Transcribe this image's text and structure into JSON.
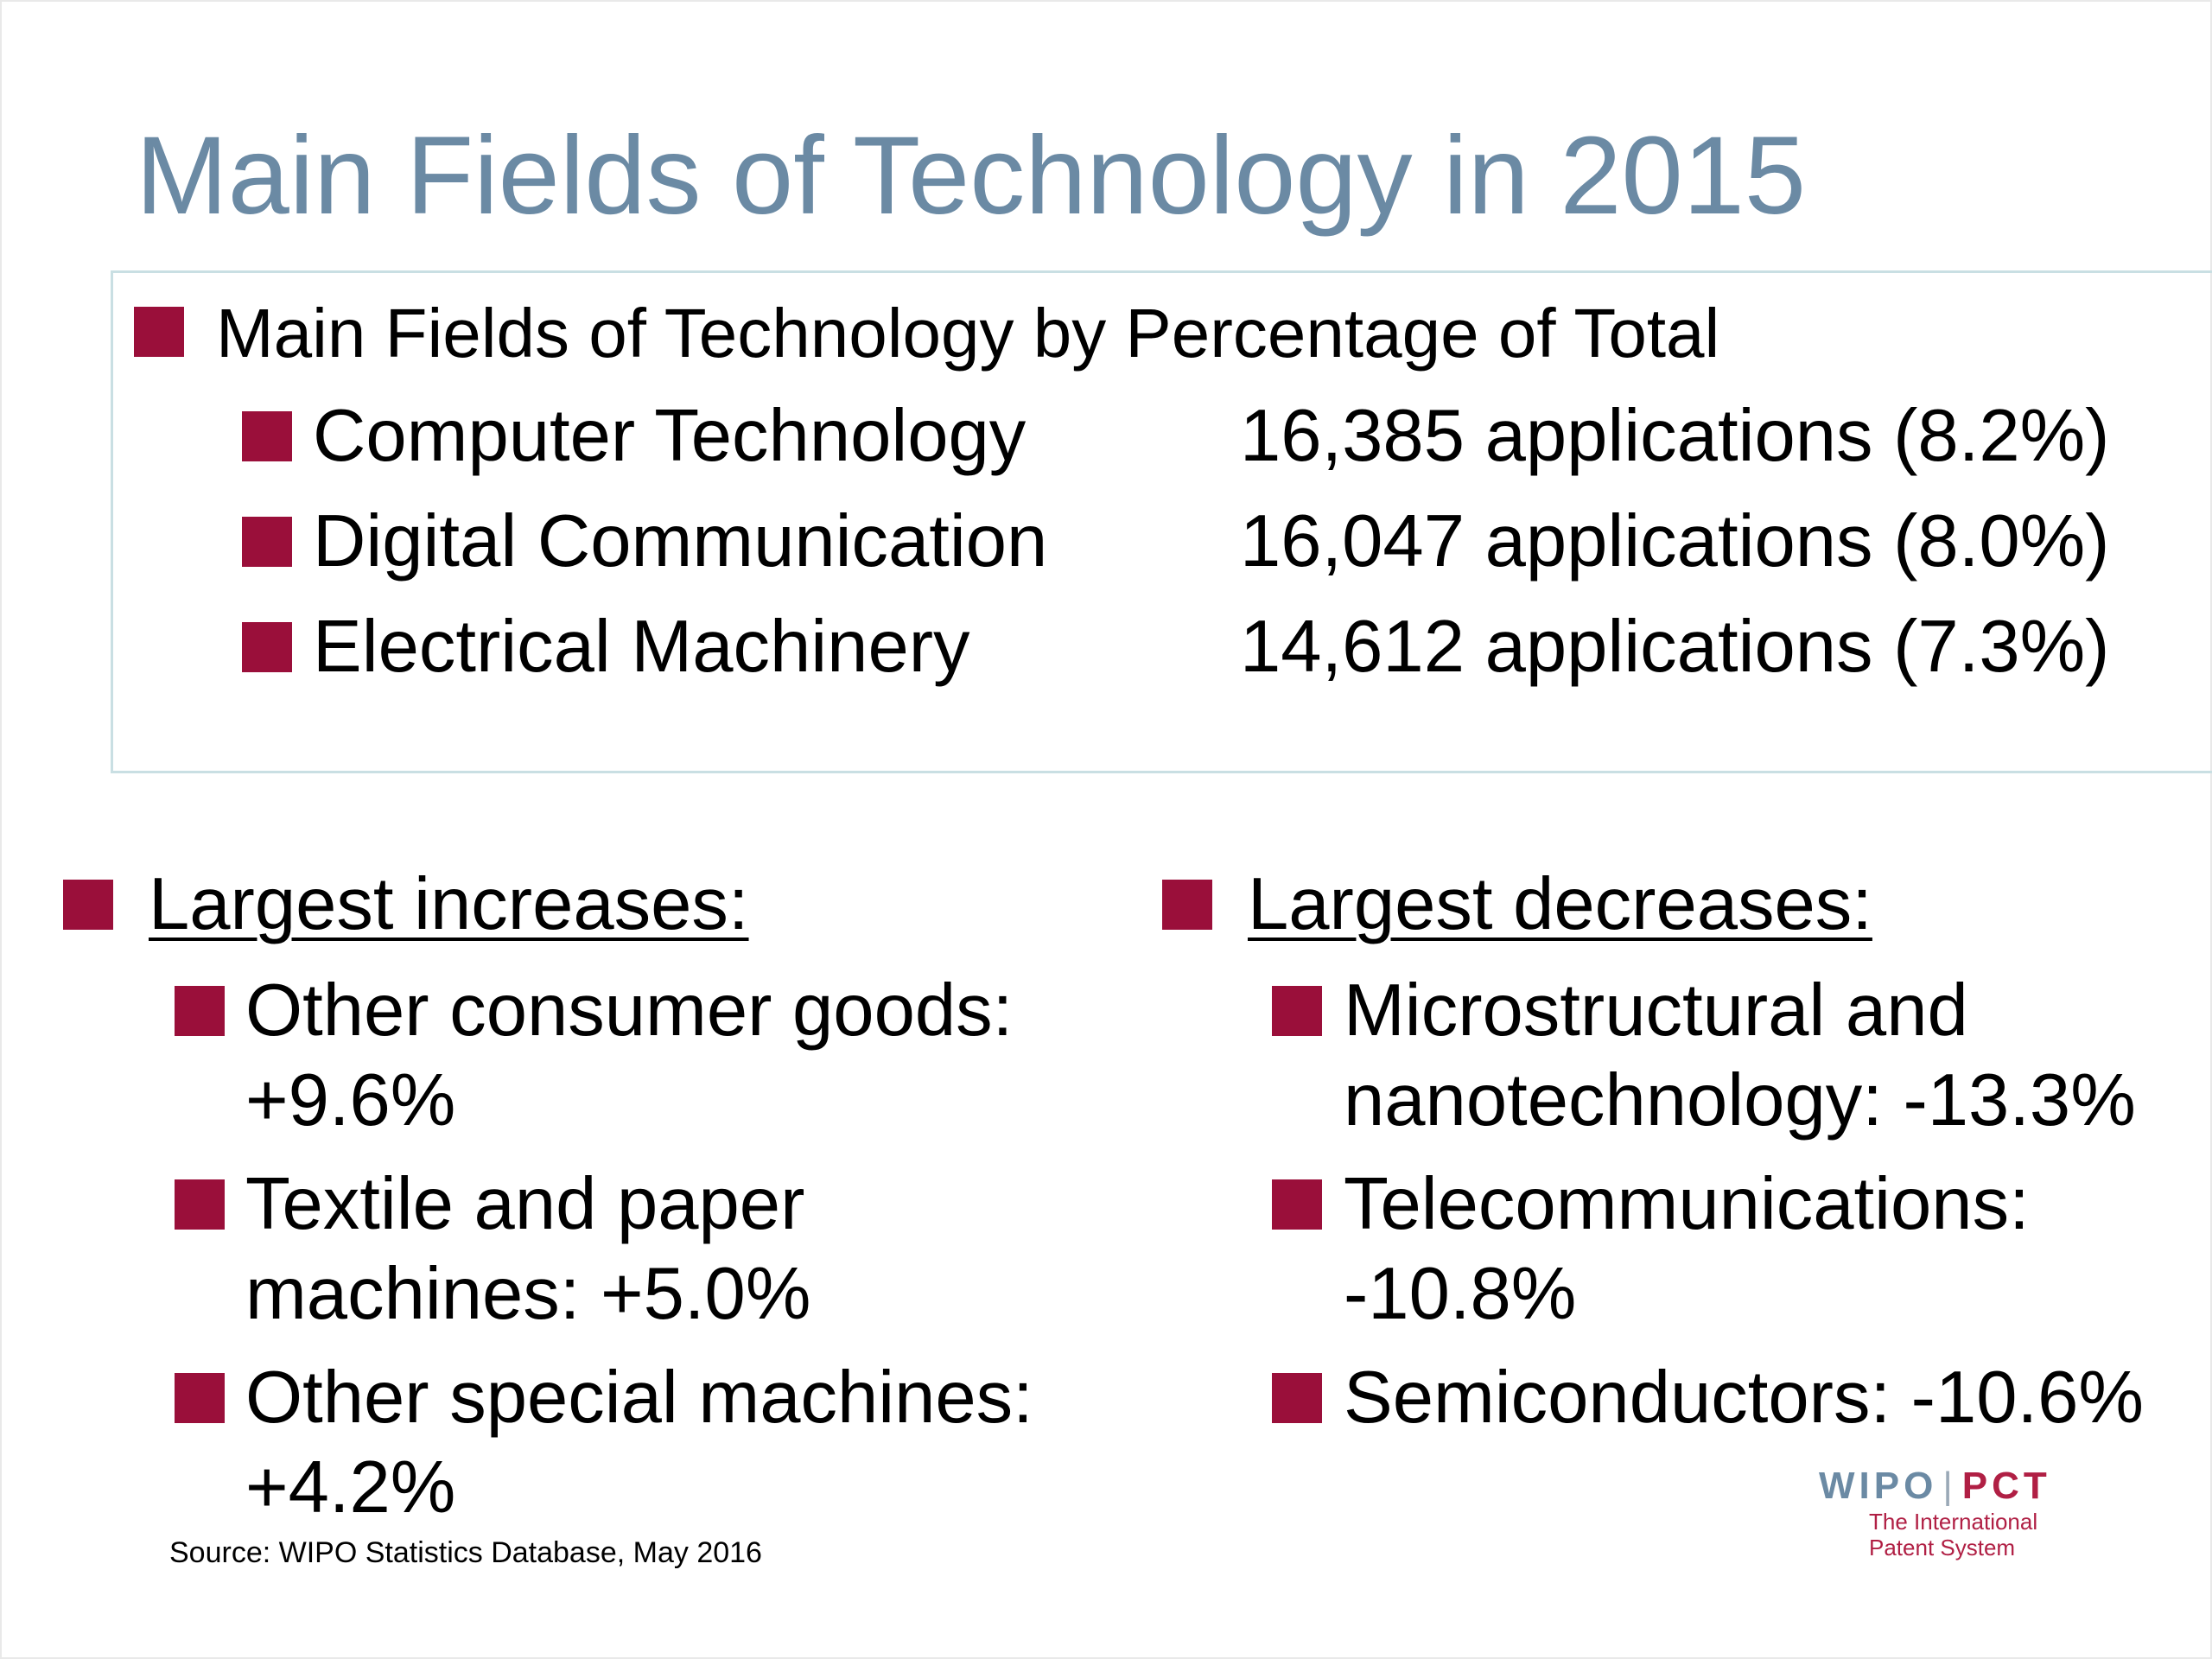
{
  "title": "Main Fields of Technology in 2015",
  "box": {
    "heading": "Main Fields of Technology by Percentage of Total",
    "rows": [
      {
        "field": "Computer Technology",
        "value": "16,385 applications (8.2%)"
      },
      {
        "field": "Digital Communication",
        "value": "16,047 applications (8.0%)"
      },
      {
        "field": "Electrical Machinery",
        "value": "14,612 applications (7.3%)"
      }
    ]
  },
  "increases": {
    "heading": "Largest increases:",
    "items": [
      {
        "line1": "Other consumer goods:",
        "line2": "+9.6%"
      },
      {
        "line1": "Textile and paper",
        "line2": "machines:  +5.0%"
      },
      {
        "line1": "Other special machines:",
        "line2": "+4.2%"
      }
    ]
  },
  "decreases": {
    "heading": "Largest decreases:",
    "items": [
      {
        "line1": "Microstructural and",
        "line2": "nanotechnology:  -13.3%"
      },
      {
        "line1": "Telecommunications:",
        "line2": "-10.8%"
      },
      {
        "line1": "Semiconductors:  -10.6%",
        "line2": ""
      }
    ]
  },
  "source": "Source:  WIPO Statistics Database, May 2016",
  "logo": {
    "wipo": "WIPO",
    "separator": "|",
    "pct": "PCT",
    "line1": "The International",
    "line2": "Patent System"
  },
  "colors": {
    "title": "#6b8aa4",
    "bullet": "#9a0f3a",
    "box_border": "#c9dfe3",
    "logo_accent": "#b01f44"
  }
}
